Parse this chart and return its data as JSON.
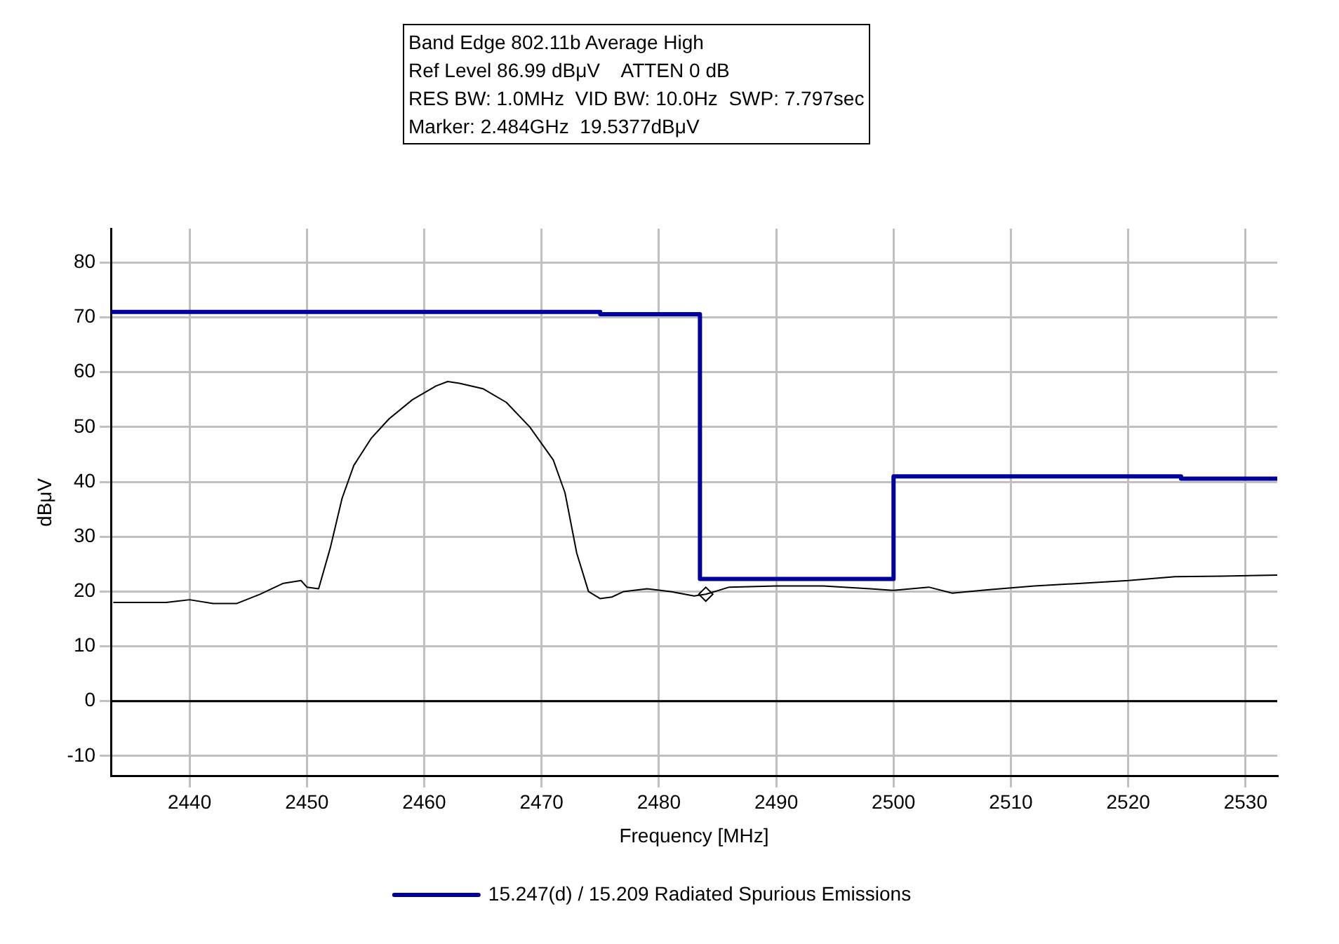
{
  "chart_data": {
    "type": "line",
    "xlabel": "Frequency [MHz]",
    "ylabel": "dBμV",
    "annotations": [
      "Band Edge 802.11b Average High",
      "Ref Level 86.99 dBμV    ATTEN 0 dB",
      "RES BW: 1.0MHz  VID BW: 10.0Hz  SWP: 7.797sec",
      "Marker: 2.484GHz  19.5377dBμV"
    ],
    "xlim": [
      2433.3,
      2532.7
    ],
    "xticks": [
      2440,
      2450,
      2460,
      2470,
      2480,
      2490,
      2500,
      2510,
      2520,
      2530
    ],
    "ylim": [
      -13.7,
      86.2
    ],
    "yticks": [
      -10,
      0,
      10,
      20,
      30,
      40,
      50,
      60,
      70,
      80
    ],
    "grid": true,
    "legend": "bottom",
    "line_style": "solid",
    "ref_lines": [
      {
        "axis": "y",
        "value": 0,
        "color": "#000000"
      }
    ],
    "series": [
      {
        "name": "15.247(d) / 15.209 Radiated Spurious Emissions",
        "marker": "none",
        "color": "#00009c",
        "x": [
          2433.3,
          2475,
          2475,
          2483.5,
          2483.5,
          2500,
          2500,
          2524.5,
          2524.5,
          2532.7
        ],
        "values": [
          71,
          71,
          70.6,
          70.6,
          22.3,
          22.3,
          41,
          41,
          40.6,
          40.6
        ]
      },
      {
        "marker": "none",
        "color": "#000000",
        "x": [
          2433.5,
          2436,
          2438,
          2440,
          2442,
          2444,
          2446,
          2448,
          2449.5,
          2450,
          2451,
          2452,
          2453,
          2454,
          2455.5,
          2457,
          2459,
          2461,
          2462,
          2463,
          2465,
          2467,
          2469,
          2471,
          2472,
          2473,
          2474,
          2475,
          2476,
          2477,
          2479,
          2481,
          2483,
          2484,
          2486,
          2490,
          2494,
          2498,
          2500,
          2503,
          2505,
          2508,
          2512,
          2516,
          2520,
          2524,
          2528,
          2532.7
        ],
        "values": [
          18,
          18,
          18,
          18.5,
          17.8,
          17.8,
          19.5,
          21.5,
          22,
          20.8,
          20.5,
          28,
          37,
          43,
          48,
          51.5,
          55,
          57.5,
          58.3,
          58,
          57,
          54.5,
          50,
          44,
          38,
          27,
          20,
          18.7,
          19,
          20,
          20.5,
          20,
          19.2,
          19.5,
          20.8,
          21,
          21,
          20.5,
          20.2,
          20.8,
          19.7,
          20.3,
          21,
          21.5,
          22,
          22.7,
          22.8,
          23
        ]
      },
      {
        "type": "scatter",
        "marker": "diamond",
        "color": "#000000",
        "x": [
          2484
        ],
        "values": [
          19.5
        ]
      }
    ]
  }
}
